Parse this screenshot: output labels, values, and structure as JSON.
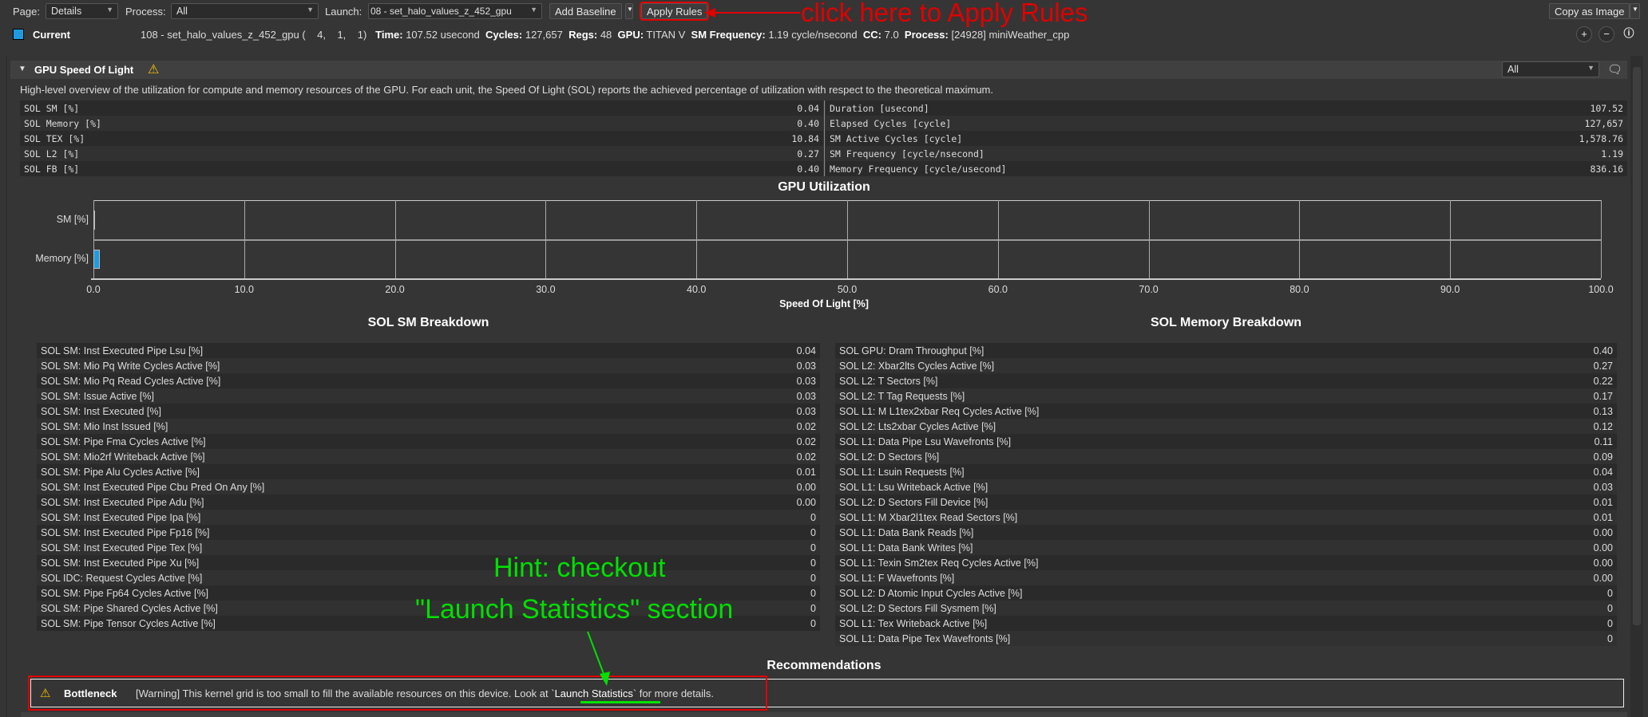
{
  "toolbar": {
    "page_label": "Page:",
    "page_value": "Details",
    "process_label": "Process:",
    "process_value": "All",
    "launch_label": "Launch:",
    "launch_value": "08 - set_halo_values_z_452_gpu",
    "add_baseline": "Add Baseline",
    "apply_rules": "Apply Rules",
    "copy_as_image": "Copy as Image"
  },
  "current": {
    "label": "Current",
    "color": "#1e9be0",
    "kernel": "108 - set_halo_values_z_452_gpu (    4,    1,    1)",
    "time_label": "Time:",
    "time": "107.52 usecond",
    "cycles_label": "Cycles:",
    "cycles": "127,657",
    "regs_label": "Regs:",
    "regs": "48",
    "gpu_label": "GPU:",
    "gpu": "TITAN V",
    "smf_label": "SM Frequency:",
    "smf": "1.19 cycle/nsecond",
    "cc_label": "CC:",
    "cc": "7.0",
    "process_label": "Process:",
    "process": "[24928] miniWeather_cpp"
  },
  "section": {
    "title": "GPU Speed Of Light",
    "filter": "All",
    "description": "High-level overview of the utilization for compute and memory resources of the GPU. For each unit, the Speed Of Light (SOL) reports the achieved percentage of utilization with respect to the theoretical maximum."
  },
  "sol_left": [
    {
      "k": "SOL SM [%]",
      "v": "0.04"
    },
    {
      "k": "SOL Memory [%]",
      "v": "0.40"
    },
    {
      "k": "SOL TEX [%]",
      "v": "10.84"
    },
    {
      "k": "SOL L2 [%]",
      "v": "0.27"
    },
    {
      "k": "SOL FB [%]",
      "v": "0.40"
    }
  ],
  "sol_right": [
    {
      "k": "Duration [usecond]",
      "v": "107.52"
    },
    {
      "k": "Elapsed Cycles [cycle]",
      "v": "127,657"
    },
    {
      "k": "SM Active Cycles [cycle]",
      "v": "1,578.76"
    },
    {
      "k": "SM Frequency [cycle/nsecond]",
      "v": "1.19"
    },
    {
      "k": "Memory Frequency [cycle/usecond]",
      "v": "836.16"
    }
  ],
  "chart_data": {
    "type": "bar",
    "orientation": "horizontal",
    "title": "GPU Utilization",
    "xlabel": "Speed Of Light [%]",
    "categories": [
      "SM [%]",
      "Memory [%]"
    ],
    "values": [
      0.04,
      0.4
    ],
    "xlim": [
      0,
      100
    ],
    "ticks": [
      "0.0",
      "10.0",
      "20.0",
      "30.0",
      "40.0",
      "50.0",
      "60.0",
      "70.0",
      "80.0",
      "90.0",
      "100.0"
    ],
    "grid": true,
    "bar_color": "#1e9be0"
  },
  "sm_breakdown": {
    "title": "SOL SM Breakdown",
    "rows": [
      {
        "k": "SOL SM: Inst Executed Pipe Lsu [%]",
        "v": "0.04"
      },
      {
        "k": "SOL SM: Mio Pq Write Cycles Active [%]",
        "v": "0.03"
      },
      {
        "k": "SOL SM: Mio Pq Read Cycles Active [%]",
        "v": "0.03"
      },
      {
        "k": "SOL SM: Issue Active [%]",
        "v": "0.03"
      },
      {
        "k": "SOL SM: Inst Executed [%]",
        "v": "0.03"
      },
      {
        "k": "SOL SM: Mio Inst Issued [%]",
        "v": "0.02"
      },
      {
        "k": "SOL SM: Pipe Fma Cycles Active [%]",
        "v": "0.02"
      },
      {
        "k": "SOL SM: Mio2rf Writeback Active [%]",
        "v": "0.02"
      },
      {
        "k": "SOL SM: Pipe Alu Cycles Active [%]",
        "v": "0.01"
      },
      {
        "k": "SOL SM: Inst Executed Pipe Cbu Pred On Any [%]",
        "v": "0.00"
      },
      {
        "k": "SOL SM: Inst Executed Pipe Adu [%]",
        "v": "0.00"
      },
      {
        "k": "SOL SM: Inst Executed Pipe Ipa [%]",
        "v": "0"
      },
      {
        "k": "SOL SM: Inst Executed Pipe Fp16 [%]",
        "v": "0"
      },
      {
        "k": "SOL SM: Inst Executed Pipe Tex [%]",
        "v": "0"
      },
      {
        "k": "SOL SM: Inst Executed Pipe Xu [%]",
        "v": "0"
      },
      {
        "k": "SOL IDC: Request Cycles Active [%]",
        "v": "0"
      },
      {
        "k": "SOL SM: Pipe Fp64 Cycles Active [%]",
        "v": "0"
      },
      {
        "k": "SOL SM: Pipe Shared Cycles Active [%]",
        "v": "0"
      },
      {
        "k": "SOL SM: Pipe Tensor Cycles Active [%]",
        "v": "0"
      }
    ]
  },
  "mem_breakdown": {
    "title": "SOL Memory Breakdown",
    "rows": [
      {
        "k": "SOL GPU: Dram Throughput [%]",
        "v": "0.40"
      },
      {
        "k": "SOL L2: Xbar2lts Cycles Active [%]",
        "v": "0.27"
      },
      {
        "k": "SOL L2: T Sectors [%]",
        "v": "0.22"
      },
      {
        "k": "SOL L2: T Tag Requests [%]",
        "v": "0.17"
      },
      {
        "k": "SOL L1: M L1tex2xbar Req Cycles Active [%]",
        "v": "0.13"
      },
      {
        "k": "SOL L2: Lts2xbar Cycles Active [%]",
        "v": "0.12"
      },
      {
        "k": "SOL L1: Data Pipe Lsu Wavefronts [%]",
        "v": "0.11"
      },
      {
        "k": "SOL L2: D Sectors [%]",
        "v": "0.09"
      },
      {
        "k": "SOL L1: Lsuin Requests [%]",
        "v": "0.04"
      },
      {
        "k": "SOL L1: Lsu Writeback Active [%]",
        "v": "0.03"
      },
      {
        "k": "SOL L2: D Sectors Fill Device [%]",
        "v": "0.01"
      },
      {
        "k": "SOL L1: M Xbar2l1tex Read Sectors [%]",
        "v": "0.01"
      },
      {
        "k": "SOL L1: Data Bank Reads [%]",
        "v": "0.00"
      },
      {
        "k": "SOL L1: Data Bank Writes [%]",
        "v": "0.00"
      },
      {
        "k": "SOL L1: Texin Sm2tex Req Cycles Active [%]",
        "v": "0.00"
      },
      {
        "k": "SOL L1: F Wavefronts [%]",
        "v": "0.00"
      },
      {
        "k": "SOL L2: D Atomic Input Cycles Active [%]",
        "v": "0"
      },
      {
        "k": "SOL L2: D Sectors Fill Sysmem [%]",
        "v": "0"
      },
      {
        "k": "SOL L1: Tex Writeback Active [%]",
        "v": "0"
      },
      {
        "k": "SOL L1: Data Pipe Tex Wavefronts [%]",
        "v": "0"
      }
    ]
  },
  "recommendations": {
    "title": "Recommendations",
    "name": "Bottleneck",
    "text_pre": "[Warning] This kernel grid is too small to fill the available resources on this device. Look at `",
    "link": "Launch Statistics",
    "text_post": "` for more details."
  },
  "annotations": {
    "apply_hint": "click here to Apply Rules",
    "hint_line1": "Hint: checkout",
    "hint_line2": "\"Launch Statistics\" section",
    "red": "#e00000",
    "green": "#00e000"
  }
}
